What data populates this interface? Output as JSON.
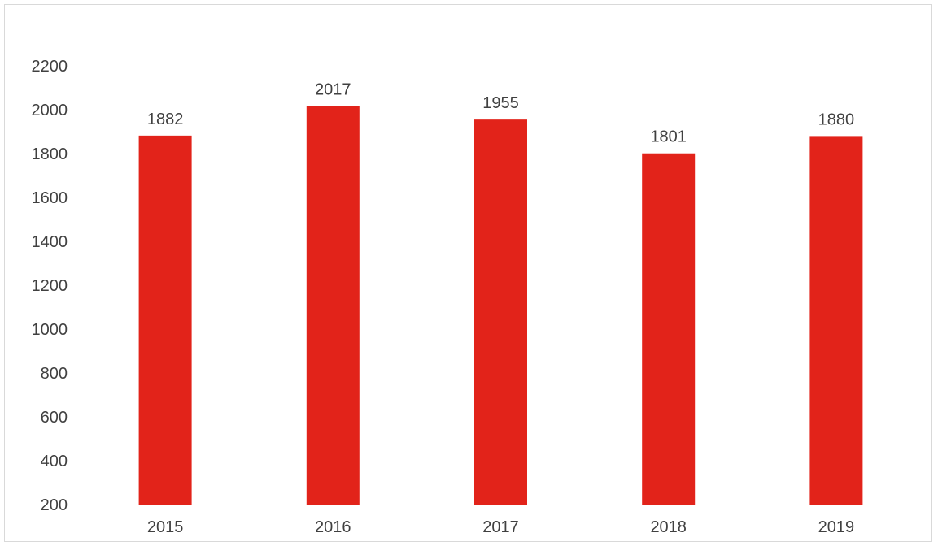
{
  "chart_data": {
    "type": "bar",
    "title": "",
    "xlabel": "",
    "ylabel": "",
    "categories": [
      "2015",
      "2016",
      "2017",
      "2018",
      "2019"
    ],
    "values": [
      1882,
      2017,
      1955,
      1801,
      1880
    ],
    "data_labels": [
      "1882",
      "2017",
      "1955",
      "1801",
      "1880"
    ],
    "y_ticks": [
      "200",
      "400",
      "600",
      "800",
      "1000",
      "1200",
      "1400",
      "1600",
      "1800",
      "2000",
      "2200"
    ],
    "ylim": [
      200,
      2200
    ],
    "grid": false,
    "legend": "none",
    "colors": {
      "bar": "#e2231a",
      "axis": "#d9d9d9",
      "text": "#404040",
      "frame": "#d9d9d9"
    }
  }
}
